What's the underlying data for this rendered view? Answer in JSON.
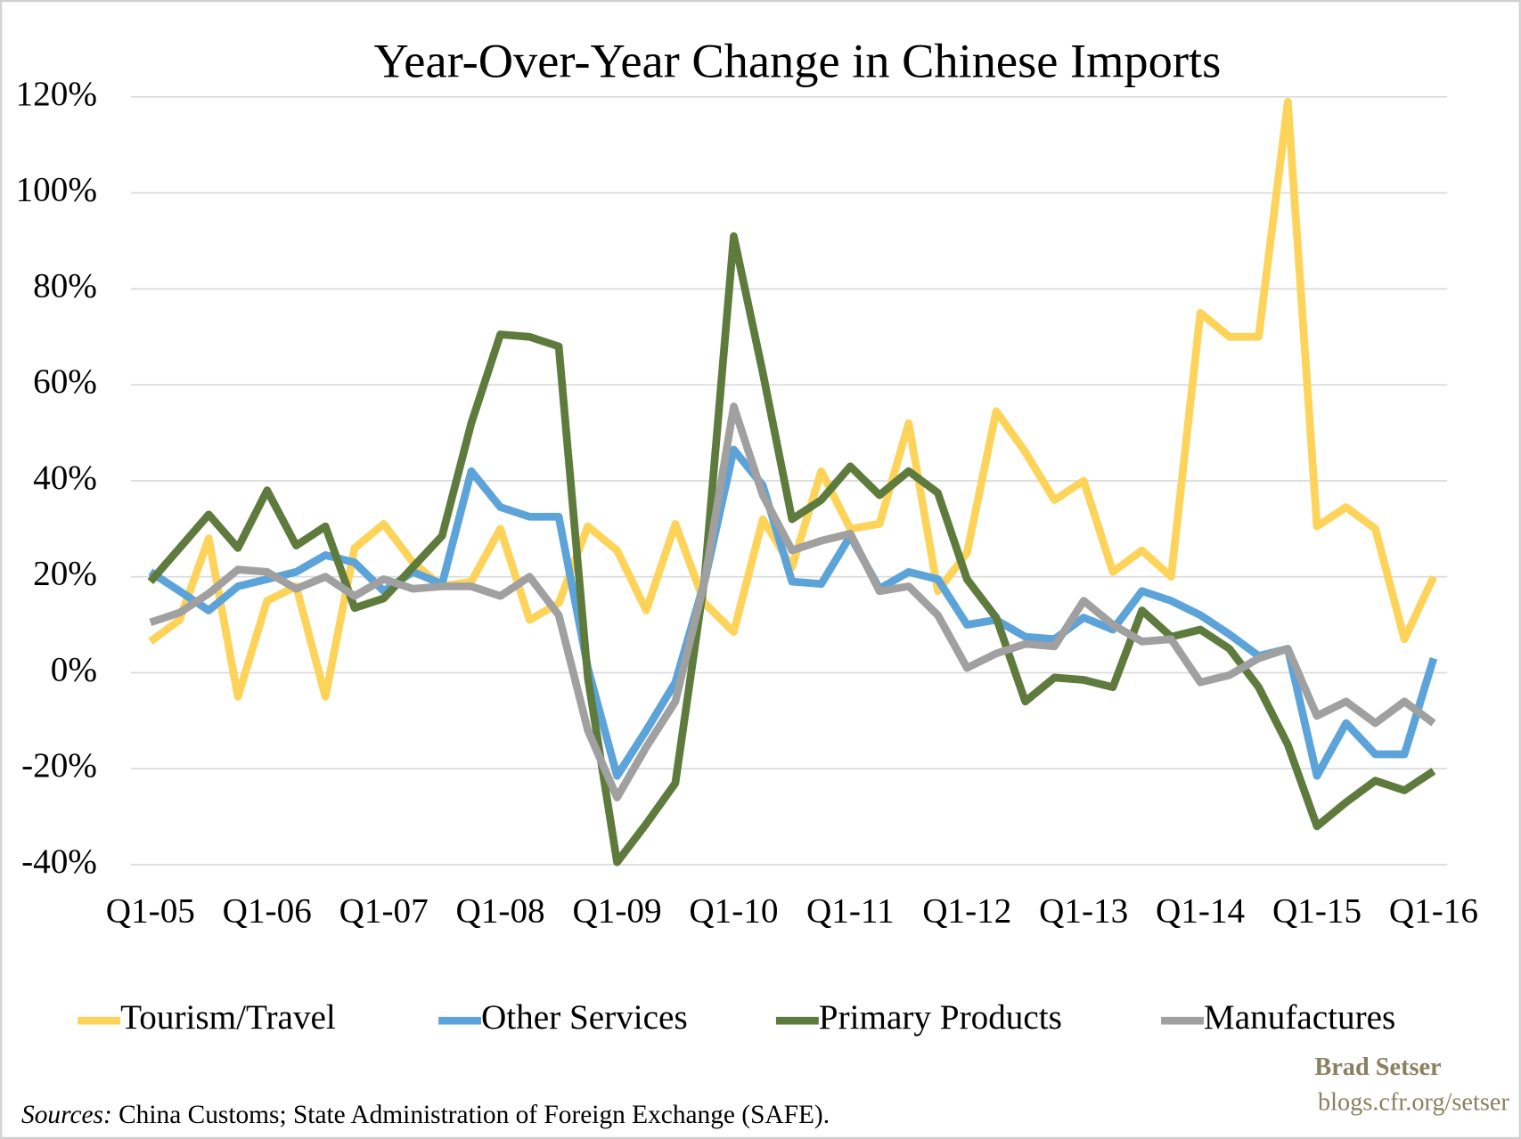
{
  "chart_data": {
    "type": "line",
    "title": "Year-Over-Year Change in Chinese Imports",
    "categories": [
      "Q1-05",
      null,
      null,
      null,
      "Q1-06",
      null,
      null,
      null,
      "Q1-07",
      null,
      null,
      null,
      "Q1-08",
      null,
      null,
      null,
      "Q1-09",
      null,
      null,
      null,
      "Q1-10",
      null,
      null,
      null,
      "Q1-11",
      null,
      null,
      null,
      "Q1-12",
      null,
      null,
      null,
      "Q1-13",
      null,
      null,
      null,
      "Q1-14",
      null,
      null,
      null,
      "Q1-15",
      null,
      null,
      null,
      "Q1-16"
    ],
    "series": [
      {
        "name": "Tourism/Travel",
        "color": "#fdd35a",
        "values": [
          6.5,
          11,
          28,
          -5,
          15,
          18,
          -5,
          26,
          31,
          23,
          18,
          19,
          30,
          11,
          14.5,
          30.5,
          25.5,
          13,
          31,
          14.5,
          8.5,
          32,
          22,
          42,
          30,
          31,
          52,
          17,
          25,
          54.5,
          46,
          36,
          40,
          21,
          25.5,
          20,
          75,
          70,
          70,
          119,
          30.5,
          34.5,
          30,
          7,
          20
        ]
      },
      {
        "name": "Other Services",
        "color": "#5ba3d9",
        "values": [
          21,
          17,
          13,
          18,
          19.5,
          21,
          24.5,
          23,
          17,
          21,
          18.5,
          42,
          34.5,
          32.5,
          32.5,
          1,
          -21.5,
          -12,
          -2,
          19,
          46.5,
          39,
          19,
          18.5,
          28.5,
          17.5,
          21,
          19.5,
          10,
          11,
          7.5,
          7,
          11.5,
          9,
          17,
          15,
          12,
          8,
          3.5,
          5,
          -21.5,
          -10.5,
          -17,
          -17,
          3
        ]
      },
      {
        "name": "Primary Products",
        "color": "#5e7a3c",
        "values": [
          19,
          26,
          33,
          26,
          38,
          26.5,
          30.5,
          13.5,
          15.5,
          22,
          28.5,
          52,
          70.5,
          70,
          68,
          -1,
          -39.5,
          -31.5,
          -23,
          19.5,
          91,
          62.5,
          32,
          36,
          43,
          37,
          42,
          37.5,
          19.5,
          11.5,
          -6,
          -1,
          -1.5,
          -3,
          13,
          7.5,
          9,
          5,
          -3,
          -15,
          -32,
          -27,
          -22.5,
          -24.5,
          -20.5
        ]
      },
      {
        "name": "Manufactures",
        "color": "#a0a0a0",
        "values": [
          10.5,
          12.5,
          16.5,
          21.5,
          21,
          17.5,
          20,
          16,
          19.5,
          17.5,
          18,
          18,
          16,
          20,
          12,
          -12,
          -26,
          -15.5,
          -6,
          19,
          55.5,
          37,
          25.5,
          27.5,
          29,
          17,
          18,
          12,
          1,
          4,
          6,
          5.5,
          15,
          10,
          6.5,
          7,
          -2,
          -0.5,
          3,
          5,
          -9,
          -6,
          -10.5,
          -6,
          -10.5
        ]
      }
    ],
    "ylim": [
      -40,
      120
    ],
    "yticks": [
      {
        "value": -40,
        "label": "-40%"
      },
      {
        "value": -20,
        "label": "-20%"
      },
      {
        "value": 0,
        "label": "0%"
      },
      {
        "value": 20,
        "label": "20%"
      },
      {
        "value": 40,
        "label": "40%"
      },
      {
        "value": 60,
        "label": "60%"
      },
      {
        "value": 80,
        "label": "80%"
      },
      {
        "value": 100,
        "label": "100%"
      },
      {
        "value": 120,
        "label": "120%"
      }
    ],
    "grid": true,
    "legend": "bottom",
    "source_label": "Sources:",
    "source_text": "China Customs; State Administration of Foreign Exchange (SAFE).",
    "author": "Brad Setser",
    "website": "blogs.cfr.org/setser"
  }
}
